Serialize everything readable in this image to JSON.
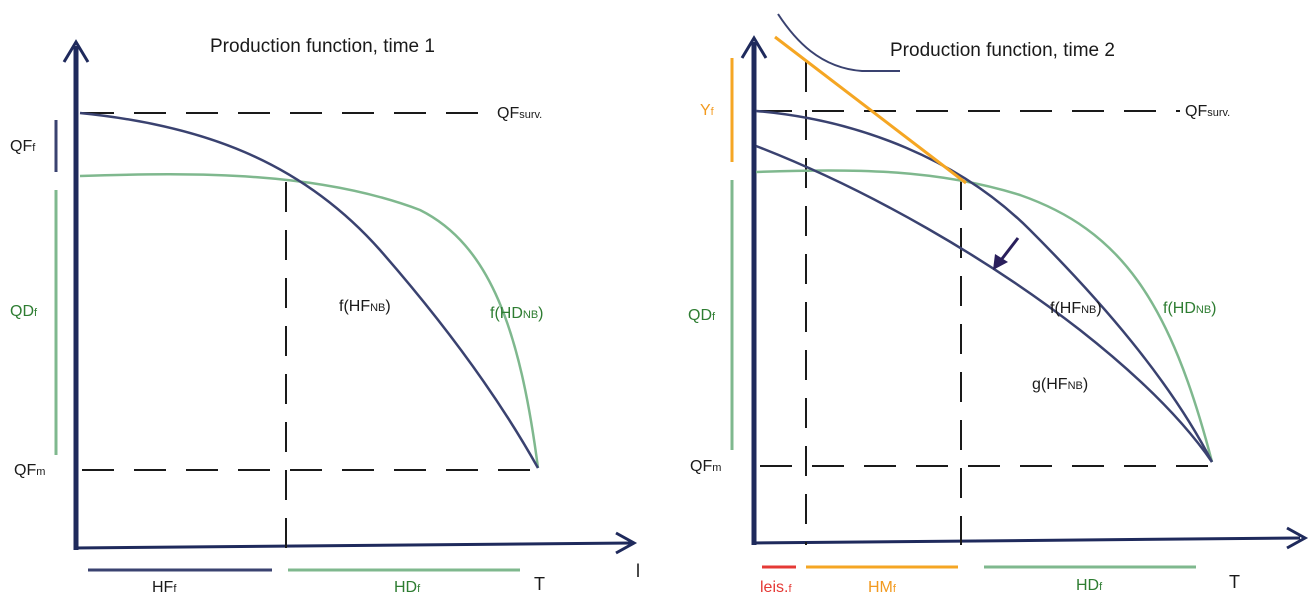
{
  "colors": {
    "axis": "#1f2a5c",
    "navy_curve": "#3a4270",
    "green_curve": "#7fb88e",
    "green_text": "#2e7d32",
    "orange": "#f5a623",
    "red": "#e53935",
    "dash": "#1a1a1a"
  },
  "left_panel": {
    "title": "Production function, time 1",
    "qf_surv_main": "QF",
    "qf_surv_sub": "surv.",
    "qff_main": "QF",
    "qff_sub": "f",
    "qdf_main": "QD",
    "qdf_sub": "f",
    "qfm_main": "QF",
    "qfm_sub": "m",
    "curve_f_main": "f(HF",
    "curve_f_sub": "NB",
    "curve_f_close": ")",
    "curve_h_main": "f(HD",
    "curve_h_sub": "NB",
    "curve_h_close": ")",
    "hff_main": "HF",
    "hff_sub": "f",
    "hdf_main": "HD",
    "hdf_sub": "f",
    "t_label": "T",
    "edge_label": "l"
  },
  "right_panel": {
    "title": "Production function, time 2",
    "qf_surv_main": "QF",
    "qf_surv_sub": "surv.",
    "yf_main": "Y",
    "yf_sub": "f",
    "qdf_main": "QD",
    "qdf_sub": "f",
    "qfm_main": "QF",
    "qfm_sub": "m",
    "curve_f_main": "f(HF",
    "curve_f_sub": "NB",
    "curve_f_close": ")",
    "curve_h_main": "f(HD",
    "curve_h_sub": "NB",
    "curve_h_close": ")",
    "curve_g_main": "g(HF",
    "curve_g_sub": "NB",
    "curve_g_close": ")",
    "leis_main": "leis.",
    "leis_sub": "f",
    "hmf_main": "HM",
    "hmf_sub": "f",
    "hdf_main": "HD",
    "hdf_sub": "f",
    "t_label": "T"
  }
}
